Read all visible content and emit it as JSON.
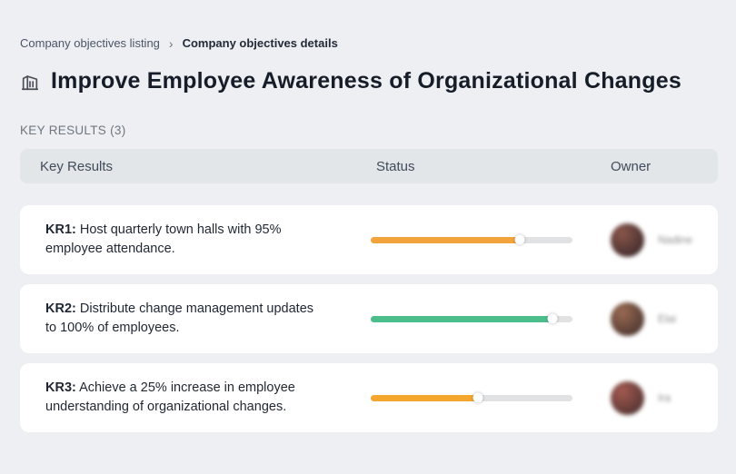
{
  "breadcrumb": {
    "items": [
      {
        "label": "Company objectives listing"
      },
      {
        "label": "Company objectives details"
      }
    ],
    "separator": "›"
  },
  "header": {
    "icon": "building-icon",
    "title": "Improve Employee Awareness of Organizational Changes"
  },
  "section": {
    "label": "KEY RESULTS (3)"
  },
  "table": {
    "columns": [
      "Key Results",
      "Status",
      "Owner"
    ],
    "rows": [
      {
        "kr_label": "KR1:",
        "kr_text": " Host quarterly town halls with 95% employee attendance.",
        "progress": 74,
        "progress_color": "#F2A33C",
        "owner": "Nadine",
        "avatar_colors": [
          "#8a564a",
          "#2e2226"
        ]
      },
      {
        "kr_label": "KR2:",
        "kr_text": " Distribute change management updates to 100% of employees.",
        "progress": 90,
        "progress_color": "#4BBE8B",
        "owner": "Elai",
        "avatar_colors": [
          "#9a6a52",
          "#3a2a28"
        ]
      },
      {
        "kr_label": "KR3:",
        "kr_text": " Achieve a 25% increase in employee understanding of organizational changes.",
        "progress": 53,
        "progress_color": "#F4A62E",
        "owner": "Ira",
        "avatar_colors": [
          "#a35a50",
          "#3f2a2a"
        ]
      }
    ]
  }
}
